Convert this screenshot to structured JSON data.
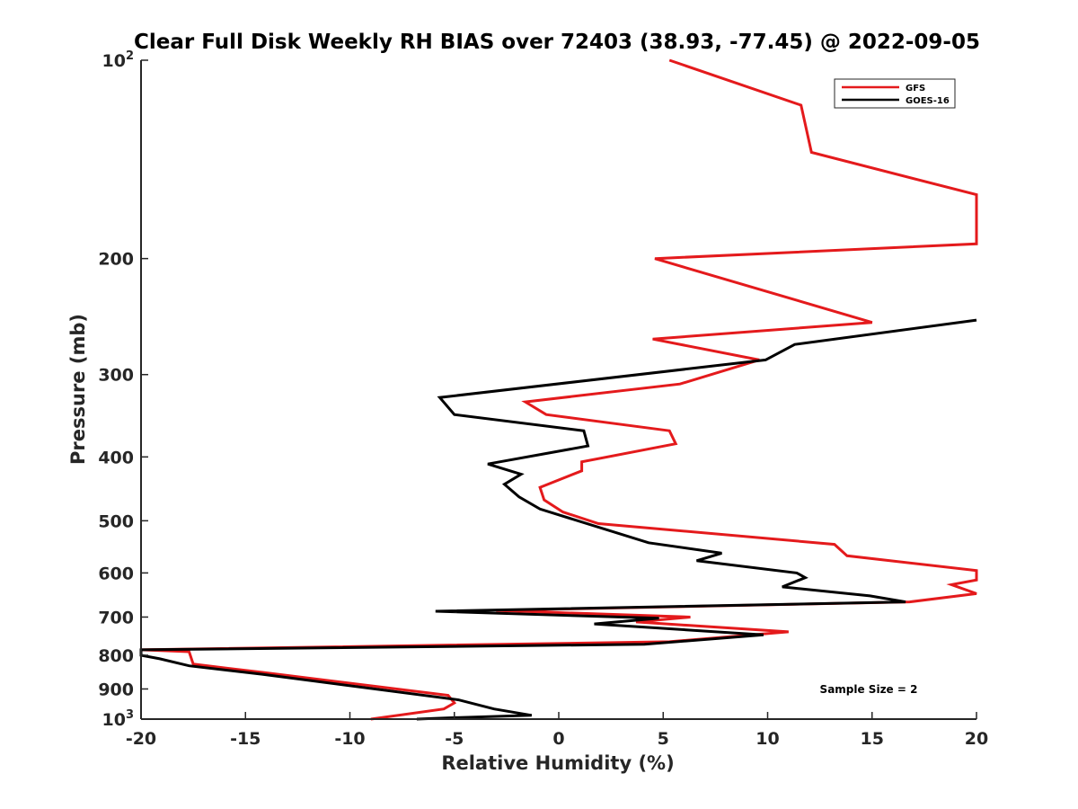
{
  "chart_data": {
    "type": "line",
    "title": "Clear Full Disk Weekly RH BIAS over 72403 (38.93, -77.45) @ 2022-09-05",
    "xlabel": "Relative Humidity (%)",
    "ylabel": "Pressure (mb)",
    "xlim": [
      -20,
      20
    ],
    "ylim": [
      100,
      1000
    ],
    "y_scale": "log",
    "y_reversed": true,
    "grid": false,
    "legend_position": "top-right",
    "x_ticks": [
      "-20",
      "-15",
      "-10",
      "-5",
      "0",
      "5",
      "10",
      "15",
      "20"
    ],
    "y_ticks": [
      {
        "value": 100,
        "base": "10",
        "exp": "2"
      },
      {
        "value": 200,
        "label": "200"
      },
      {
        "value": 300,
        "label": "300"
      },
      {
        "value": 400,
        "label": "400"
      },
      {
        "value": 500,
        "label": "500"
      },
      {
        "value": 600,
        "label": "600"
      },
      {
        "value": 700,
        "label": "700"
      },
      {
        "value": 800,
        "label": "800"
      },
      {
        "value": 900,
        "label": "900"
      },
      {
        "value": 1000,
        "base": "10",
        "exp": "3"
      }
    ],
    "annotation": "Sample Size = 2",
    "series": [
      {
        "name": "GFS",
        "color": "#e41a1c",
        "points": [
          [
            5.3,
            100
          ],
          [
            11.6,
            117
          ],
          [
            12.1,
            138
          ],
          [
            20,
            160
          ],
          [
            20,
            190
          ],
          [
            4.6,
            200
          ],
          [
            15,
            250
          ],
          [
            4.5,
            265
          ],
          [
            9.6,
            285
          ],
          [
            5.8,
            310
          ],
          [
            -1.6,
            330
          ],
          [
            -0.6,
            345
          ],
          [
            5.3,
            365
          ],
          [
            5.6,
            382
          ],
          [
            1.1,
            407
          ],
          [
            1.1,
            420
          ],
          [
            -0.9,
            445
          ],
          [
            -0.7,
            465
          ],
          [
            0.2,
            485
          ],
          [
            1.9,
            505
          ],
          [
            13.2,
            543
          ],
          [
            13.8,
            565
          ],
          [
            20,
            595
          ],
          [
            20,
            615
          ],
          [
            18.8,
            625
          ],
          [
            20,
            645
          ],
          [
            16.8,
            664
          ],
          [
            -3,
            684
          ],
          [
            6.3,
            700
          ],
          [
            3.7,
            712
          ],
          [
            11,
            737
          ],
          [
            5.3,
            763
          ],
          [
            -20,
            785
          ],
          [
            -17.7,
            790
          ],
          [
            -17.5,
            825
          ],
          [
            -14.1,
            850
          ],
          [
            -5.3,
            920
          ],
          [
            -5,
            945
          ],
          [
            -5.5,
            965
          ],
          [
            -9,
            1000
          ]
        ]
      },
      {
        "name": "GOES-16",
        "color": "#000000",
        "points": [
          [
            20,
            248
          ],
          [
            11.3,
            270
          ],
          [
            9.9,
            285
          ],
          [
            -5.7,
            325
          ],
          [
            -5,
            345
          ],
          [
            1.2,
            365
          ],
          [
            1.4,
            385
          ],
          [
            -3.4,
            410
          ],
          [
            -1.8,
            425
          ],
          [
            -2.6,
            440
          ],
          [
            -1.9,
            460
          ],
          [
            -0.9,
            480
          ],
          [
            4.3,
            540
          ],
          [
            7.8,
            560
          ],
          [
            6.6,
            575
          ],
          [
            11.4,
            600
          ],
          [
            11.8,
            610
          ],
          [
            10.7,
            630
          ],
          [
            14.9,
            650
          ],
          [
            16.6,
            664
          ],
          [
            -5.9,
            686
          ],
          [
            4.8,
            703
          ],
          [
            1.7,
            717
          ],
          [
            9.8,
            745
          ],
          [
            4.1,
            770
          ],
          [
            -20,
            785
          ],
          [
            -20,
            800
          ],
          [
            -19.1,
            810
          ],
          [
            -17.7,
            830
          ],
          [
            -14.2,
            855
          ],
          [
            -4.8,
            935
          ],
          [
            -3.1,
            965
          ],
          [
            -1.3,
            987
          ],
          [
            -5,
            995
          ],
          [
            -6.8,
            1000
          ]
        ]
      }
    ]
  }
}
